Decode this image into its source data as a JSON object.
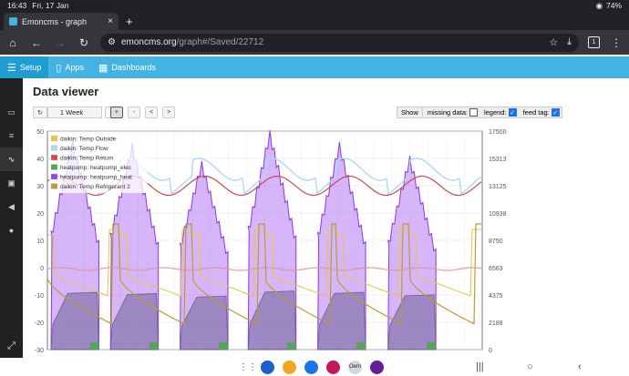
{
  "status": {
    "time": "16:43",
    "date": "Fri, 17 Jan",
    "battery": "74%"
  },
  "browser": {
    "tab_title": "Emoncms - graph",
    "new_tab_glyph": "+",
    "url_domain": "emoncms.org",
    "url_path": "/graph#/Saved/22712",
    "tab_count": "1"
  },
  "nav": {
    "setup": "Setup",
    "apps": "Apps",
    "dashboards": "Dashboards"
  },
  "page": {
    "title": "Data viewer"
  },
  "controls": {
    "refresh_icon": "refresh-icon",
    "timescale": "1 Week",
    "zoom_in": "+",
    "zoom_out": "-",
    "pan_left": "<",
    "pan_right": ">",
    "show_label": "Show",
    "missing_data_label": "missing data:",
    "missing_data_checked": false,
    "legend_label": "legend:",
    "legend_checked": true,
    "feed_tag_label": "feed tag:",
    "feed_tag_checked": true
  },
  "chart_data": {
    "type": "line",
    "y_left": {
      "ticks": [
        "50",
        "40",
        "30",
        "20",
        "10",
        "0",
        "-10",
        "-20",
        "-30"
      ],
      "range": [
        -30,
        50
      ]
    },
    "y_right": {
      "ticks": [
        "17500",
        "15313",
        "13125",
        "10938",
        "8750",
        "6563",
        "4375",
        "2188",
        "0"
      ],
      "range": [
        0,
        17500
      ]
    },
    "grid": true,
    "legend_position": "top-left",
    "series": [
      {
        "name": "daikin: Temp Outside",
        "color": "#edc240",
        "axis": "left"
      },
      {
        "name": "daikin: Temp Flow",
        "color": "#afd8f8",
        "axis": "left"
      },
      {
        "name": "daikin: Temp Return",
        "color": "#cb4b4b",
        "axis": "left"
      },
      {
        "name": "heatpump: heatpump_elec",
        "color": "#4da74d",
        "axis": "right"
      },
      {
        "name": "heatpump: heatpump_heat",
        "color": "#9440ed",
        "axis": "right"
      },
      {
        "name": "daikin: Temp Refrigerant 2",
        "color": "#bd9b33",
        "axis": "left"
      }
    ],
    "cycles": 6
  },
  "taskbar": {
    "apps": [
      {
        "name": "contacts",
        "color": "#1e5fc9"
      },
      {
        "name": "files",
        "color": "#f3a623"
      },
      {
        "name": "messages",
        "color": "#1a73e8"
      },
      {
        "name": "camera",
        "color": "#c2185b"
      },
      {
        "name": "openenergy",
        "color": "#cfd8dc",
        "label": "Oem"
      },
      {
        "name": "email",
        "color": "#6a1b9a"
      }
    ]
  }
}
